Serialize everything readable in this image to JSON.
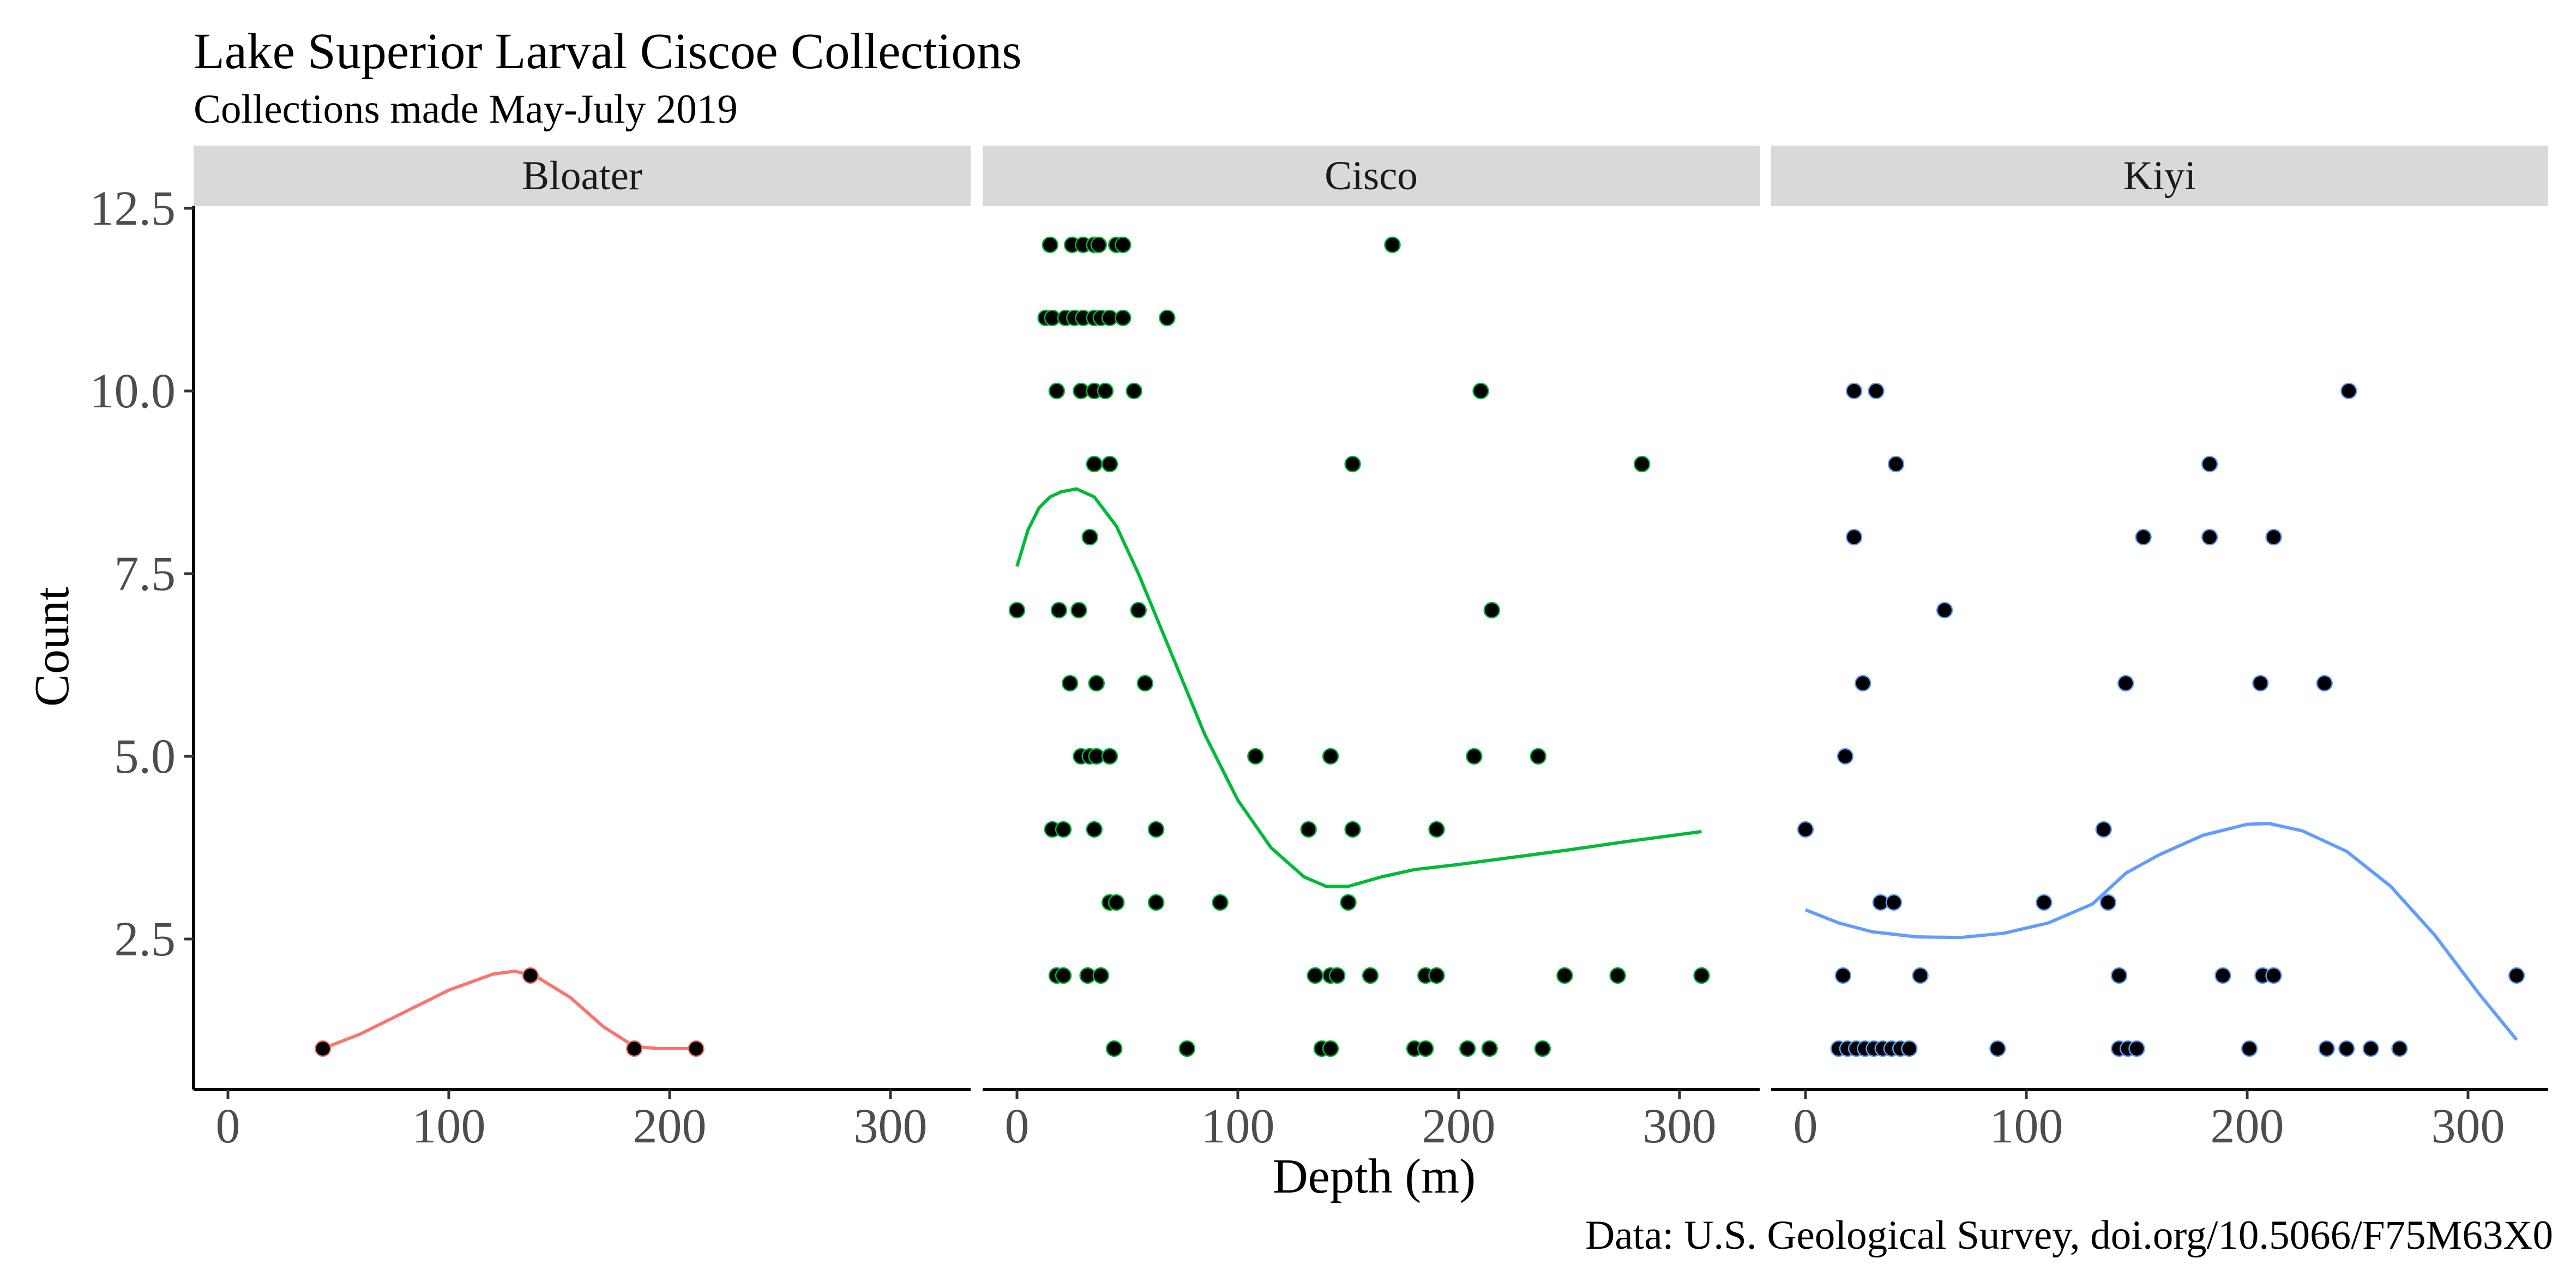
{
  "chart_data": {
    "type": "scatter",
    "title": "Lake Superior Larval Ciscoe Collections",
    "subtitle": "Collections made May-July 2019",
    "xlabel": "Depth (m)",
    "ylabel": "Count",
    "caption": "Data: U.S. Geological Survey, doi.org/10.5066/F75M63X0",
    "xlim": [
      -15,
      335
    ],
    "ylim": [
      0.45,
      12.6
    ],
    "x_ticks": [
      0,
      100,
      200,
      300
    ],
    "x_tick_labels": [
      "0",
      "100",
      "200",
      "300"
    ],
    "y_ticks": [
      2.5,
      5.0,
      7.5,
      10.0,
      12.5
    ],
    "y_tick_labels": [
      "2.5",
      "5.0",
      "7.5",
      "10.0",
      "12.5"
    ],
    "grid": false,
    "legend": "none",
    "facets": [
      {
        "name": "Bloater",
        "color": "#F8766D",
        "points": [
          {
            "x": 43,
            "y": 1
          },
          {
            "x": 137,
            "y": 2
          },
          {
            "x": 184,
            "y": 1
          },
          {
            "x": 212,
            "y": 1
          }
        ],
        "smooth": [
          {
            "x": 43,
            "y": 1.0
          },
          {
            "x": 60,
            "y": 1.2
          },
          {
            "x": 80,
            "y": 1.5
          },
          {
            "x": 100,
            "y": 1.8
          },
          {
            "x": 120,
            "y": 2.02
          },
          {
            "x": 130,
            "y": 2.06
          },
          {
            "x": 140,
            "y": 1.98
          },
          {
            "x": 155,
            "y": 1.7
          },
          {
            "x": 170,
            "y": 1.3
          },
          {
            "x": 184,
            "y": 1.03
          },
          {
            "x": 195,
            "y": 1.0
          },
          {
            "x": 212,
            "y": 1.0
          }
        ]
      },
      {
        "name": "Cisco",
        "color": "#00BA38",
        "points": [
          {
            "x": 15,
            "y": 12
          },
          {
            "x": 25,
            "y": 12
          },
          {
            "x": 30,
            "y": 12
          },
          {
            "x": 35,
            "y": 12
          },
          {
            "x": 37,
            "y": 12
          },
          {
            "x": 45,
            "y": 12
          },
          {
            "x": 48,
            "y": 12
          },
          {
            "x": 170,
            "y": 12
          },
          {
            "x": 13,
            "y": 11
          },
          {
            "x": 16,
            "y": 11
          },
          {
            "x": 22,
            "y": 11
          },
          {
            "x": 26,
            "y": 11
          },
          {
            "x": 30,
            "y": 11
          },
          {
            "x": 35,
            "y": 11
          },
          {
            "x": 38,
            "y": 11
          },
          {
            "x": 42,
            "y": 11
          },
          {
            "x": 48,
            "y": 11
          },
          {
            "x": 68,
            "y": 11
          },
          {
            "x": 18,
            "y": 10
          },
          {
            "x": 29,
            "y": 10
          },
          {
            "x": 35,
            "y": 10
          },
          {
            "x": 40,
            "y": 10
          },
          {
            "x": 53,
            "y": 10
          },
          {
            "x": 210,
            "y": 10
          },
          {
            "x": 35,
            "y": 9
          },
          {
            "x": 42,
            "y": 9
          },
          {
            "x": 152,
            "y": 9
          },
          {
            "x": 283,
            "y": 9
          },
          {
            "x": 33,
            "y": 8
          },
          {
            "x": 0,
            "y": 7
          },
          {
            "x": 19,
            "y": 7
          },
          {
            "x": 28,
            "y": 7
          },
          {
            "x": 55,
            "y": 7
          },
          {
            "x": 215,
            "y": 7
          },
          {
            "x": 24,
            "y": 6
          },
          {
            "x": 36,
            "y": 6
          },
          {
            "x": 58,
            "y": 6
          },
          {
            "x": 29,
            "y": 5
          },
          {
            "x": 33,
            "y": 5
          },
          {
            "x": 36,
            "y": 5
          },
          {
            "x": 42,
            "y": 5
          },
          {
            "x": 108,
            "y": 5
          },
          {
            "x": 142,
            "y": 5
          },
          {
            "x": 207,
            "y": 5
          },
          {
            "x": 236,
            "y": 5
          },
          {
            "x": 16,
            "y": 4
          },
          {
            "x": 21,
            "y": 4
          },
          {
            "x": 35,
            "y": 4
          },
          {
            "x": 63,
            "y": 4
          },
          {
            "x": 132,
            "y": 4
          },
          {
            "x": 152,
            "y": 4
          },
          {
            "x": 190,
            "y": 4
          },
          {
            "x": 42,
            "y": 3
          },
          {
            "x": 45,
            "y": 3
          },
          {
            "x": 63,
            "y": 3
          },
          {
            "x": 92,
            "y": 3
          },
          {
            "x": 150,
            "y": 3
          },
          {
            "x": 18,
            "y": 2
          },
          {
            "x": 21,
            "y": 2
          },
          {
            "x": 32,
            "y": 2
          },
          {
            "x": 38,
            "y": 2
          },
          {
            "x": 135,
            "y": 2
          },
          {
            "x": 142,
            "y": 2
          },
          {
            "x": 145,
            "y": 2
          },
          {
            "x": 160,
            "y": 2
          },
          {
            "x": 185,
            "y": 2
          },
          {
            "x": 190,
            "y": 2
          },
          {
            "x": 248,
            "y": 2
          },
          {
            "x": 272,
            "y": 2
          },
          {
            "x": 310,
            "y": 2
          },
          {
            "x": 44,
            "y": 1
          },
          {
            "x": 77,
            "y": 1
          },
          {
            "x": 138,
            "y": 1
          },
          {
            "x": 142,
            "y": 1
          },
          {
            "x": 180,
            "y": 1
          },
          {
            "x": 185,
            "y": 1
          },
          {
            "x": 204,
            "y": 1
          },
          {
            "x": 214,
            "y": 1
          },
          {
            "x": 238,
            "y": 1
          }
        ],
        "smooth": [
          {
            "x": 0,
            "y": 7.6
          },
          {
            "x": 5,
            "y": 8.1
          },
          {
            "x": 10,
            "y": 8.4
          },
          {
            "x": 15,
            "y": 8.55
          },
          {
            "x": 20,
            "y": 8.62
          },
          {
            "x": 27,
            "y": 8.66
          },
          {
            "x": 35,
            "y": 8.55
          },
          {
            "x": 45,
            "y": 8.15
          },
          {
            "x": 55,
            "y": 7.5
          },
          {
            "x": 70,
            "y": 6.4
          },
          {
            "x": 85,
            "y": 5.3
          },
          {
            "x": 100,
            "y": 4.4
          },
          {
            "x": 115,
            "y": 3.75
          },
          {
            "x": 130,
            "y": 3.35
          },
          {
            "x": 140,
            "y": 3.22
          },
          {
            "x": 150,
            "y": 3.22
          },
          {
            "x": 165,
            "y": 3.35
          },
          {
            "x": 180,
            "y": 3.45
          },
          {
            "x": 200,
            "y": 3.52
          },
          {
            "x": 225,
            "y": 3.62
          },
          {
            "x": 250,
            "y": 3.72
          },
          {
            "x": 275,
            "y": 3.83
          },
          {
            "x": 300,
            "y": 3.93
          },
          {
            "x": 310,
            "y": 3.97
          }
        ]
      },
      {
        "name": "Kiyi",
        "color": "#619CFF",
        "points": [
          {
            "x": 22,
            "y": 10
          },
          {
            "x": 32,
            "y": 10
          },
          {
            "x": 246,
            "y": 10
          },
          {
            "x": 41,
            "y": 9
          },
          {
            "x": 183,
            "y": 9
          },
          {
            "x": 22,
            "y": 8
          },
          {
            "x": 153,
            "y": 8
          },
          {
            "x": 183,
            "y": 8
          },
          {
            "x": 212,
            "y": 8
          },
          {
            "x": 63,
            "y": 7
          },
          {
            "x": 26,
            "y": 6
          },
          {
            "x": 145,
            "y": 6
          },
          {
            "x": 206,
            "y": 6
          },
          {
            "x": 235,
            "y": 6
          },
          {
            "x": 18,
            "y": 5
          },
          {
            "x": 0,
            "y": 4
          },
          {
            "x": 135,
            "y": 4
          },
          {
            "x": 34,
            "y": 3
          },
          {
            "x": 40,
            "y": 3
          },
          {
            "x": 108,
            "y": 3
          },
          {
            "x": 137,
            "y": 3
          },
          {
            "x": 17,
            "y": 2
          },
          {
            "x": 52,
            "y": 2
          },
          {
            "x": 142,
            "y": 2
          },
          {
            "x": 189,
            "y": 2
          },
          {
            "x": 207,
            "y": 2
          },
          {
            "x": 212,
            "y": 2
          },
          {
            "x": 322,
            "y": 2
          },
          {
            "x": 15,
            "y": 1
          },
          {
            "x": 19,
            "y": 1
          },
          {
            "x": 23,
            "y": 1
          },
          {
            "x": 27,
            "y": 1
          },
          {
            "x": 31,
            "y": 1
          },
          {
            "x": 35,
            "y": 1
          },
          {
            "x": 39,
            "y": 1
          },
          {
            "x": 43,
            "y": 1
          },
          {
            "x": 47,
            "y": 1
          },
          {
            "x": 87,
            "y": 1
          },
          {
            "x": 142,
            "y": 1
          },
          {
            "x": 146,
            "y": 1
          },
          {
            "x": 150,
            "y": 1
          },
          {
            "x": 201,
            "y": 1
          },
          {
            "x": 236,
            "y": 1
          },
          {
            "x": 245,
            "y": 1
          },
          {
            "x": 256,
            "y": 1
          },
          {
            "x": 269,
            "y": 1
          }
        ],
        "smooth": [
          {
            "x": 0,
            "y": 2.9
          },
          {
            "x": 15,
            "y": 2.72
          },
          {
            "x": 30,
            "y": 2.6
          },
          {
            "x": 50,
            "y": 2.53
          },
          {
            "x": 70,
            "y": 2.52
          },
          {
            "x": 90,
            "y": 2.58
          },
          {
            "x": 110,
            "y": 2.72
          },
          {
            "x": 130,
            "y": 2.98
          },
          {
            "x": 145,
            "y": 3.4
          },
          {
            "x": 160,
            "y": 3.65
          },
          {
            "x": 180,
            "y": 3.92
          },
          {
            "x": 200,
            "y": 4.07
          },
          {
            "x": 210,
            "y": 4.08
          },
          {
            "x": 225,
            "y": 3.98
          },
          {
            "x": 245,
            "y": 3.7
          },
          {
            "x": 265,
            "y": 3.22
          },
          {
            "x": 285,
            "y": 2.55
          },
          {
            "x": 305,
            "y": 1.75
          },
          {
            "x": 322,
            "y": 1.12
          }
        ]
      }
    ]
  }
}
